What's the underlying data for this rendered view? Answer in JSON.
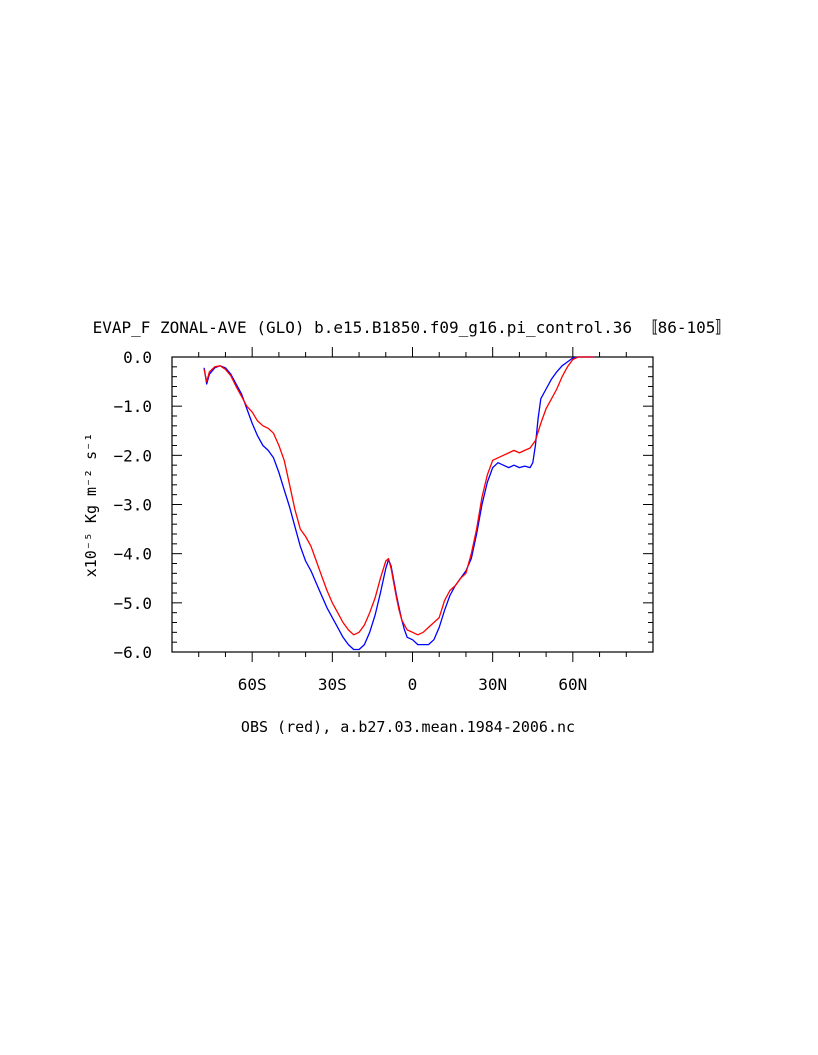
{
  "chart_data": {
    "type": "line",
    "title": "EVAP_F ZONAL-AVE (GLO) b.e15.B1850.f09_g16.pi_control.36 〚86-105〛",
    "xlabel": "OBS (red), a.b27.03.mean.1984-2006.nc",
    "ylabel": "x10⁻⁵ Kg m⁻² s⁻¹",
    "xlim": [
      -90,
      90
    ],
    "ylim": [
      -6.0,
      0.0
    ],
    "x_ticks": [
      {
        "value": -60,
        "label": "60S"
      },
      {
        "value": -30,
        "label": "30S"
      },
      {
        "value": 0,
        "label": "0"
      },
      {
        "value": 30,
        "label": "30N"
      },
      {
        "value": 60,
        "label": "60N"
      }
    ],
    "y_ticks": [
      {
        "value": 0,
        "label": "0.0"
      },
      {
        "value": -1,
        "label": "−1.0"
      },
      {
        "value": -2,
        "label": "−2.0"
      },
      {
        "value": -3,
        "label": "−3.0"
      },
      {
        "value": -4,
        "label": "−4.0"
      },
      {
        "value": -5,
        "label": "−5.0"
      },
      {
        "value": -6,
        "label": "−6.0"
      }
    ],
    "series": [
      {
        "color": "#0000ff",
        "points": [
          [
            -78,
            -0.22
          ],
          [
            -77,
            -0.55
          ],
          [
            -76,
            -0.35
          ],
          [
            -74,
            -0.22
          ],
          [
            -72,
            -0.18
          ],
          [
            -70,
            -0.22
          ],
          [
            -68,
            -0.35
          ],
          [
            -66,
            -0.55
          ],
          [
            -64,
            -0.75
          ],
          [
            -62,
            -1.05
          ],
          [
            -60,
            -1.35
          ],
          [
            -58,
            -1.6
          ],
          [
            -56,
            -1.8
          ],
          [
            -54,
            -1.9
          ],
          [
            -52,
            -2.05
          ],
          [
            -50,
            -2.35
          ],
          [
            -48,
            -2.7
          ],
          [
            -46,
            -3.05
          ],
          [
            -44,
            -3.45
          ],
          [
            -42,
            -3.85
          ],
          [
            -40,
            -4.15
          ],
          [
            -38,
            -4.35
          ],
          [
            -36,
            -4.6
          ],
          [
            -34,
            -4.85
          ],
          [
            -32,
            -5.1
          ],
          [
            -30,
            -5.3
          ],
          [
            -28,
            -5.5
          ],
          [
            -26,
            -5.7
          ],
          [
            -24,
            -5.85
          ],
          [
            -22,
            -5.95
          ],
          [
            -20,
            -5.95
          ],
          [
            -18,
            -5.85
          ],
          [
            -16,
            -5.6
          ],
          [
            -14,
            -5.25
          ],
          [
            -12,
            -4.8
          ],
          [
            -10,
            -4.3
          ],
          [
            -9,
            -4.12
          ],
          [
            -8,
            -4.25
          ],
          [
            -7,
            -4.55
          ],
          [
            -6,
            -4.85
          ],
          [
            -5,
            -5.1
          ],
          [
            -4,
            -5.35
          ],
          [
            -3,
            -5.55
          ],
          [
            -2,
            -5.7
          ],
          [
            0,
            -5.75
          ],
          [
            2,
            -5.85
          ],
          [
            4,
            -5.85
          ],
          [
            6,
            -5.85
          ],
          [
            8,
            -5.75
          ],
          [
            10,
            -5.5
          ],
          [
            12,
            -5.15
          ],
          [
            14,
            -4.85
          ],
          [
            16,
            -4.65
          ],
          [
            18,
            -4.5
          ],
          [
            20,
            -4.35
          ],
          [
            22,
            -4.1
          ],
          [
            24,
            -3.6
          ],
          [
            26,
            -3.0
          ],
          [
            28,
            -2.55
          ],
          [
            30,
            -2.25
          ],
          [
            32,
            -2.15
          ],
          [
            34,
            -2.2
          ],
          [
            36,
            -2.25
          ],
          [
            38,
            -2.2
          ],
          [
            40,
            -2.25
          ],
          [
            42,
            -2.22
          ],
          [
            44,
            -2.25
          ],
          [
            45,
            -2.15
          ],
          [
            46,
            -1.8
          ],
          [
            47,
            -1.25
          ],
          [
            48,
            -0.85
          ],
          [
            50,
            -0.65
          ],
          [
            52,
            -0.45
          ],
          [
            54,
            -0.3
          ],
          [
            56,
            -0.18
          ],
          [
            58,
            -0.1
          ],
          [
            60,
            -0.02
          ],
          [
            62,
            0.0
          ],
          [
            64,
            0.0
          ],
          [
            66,
            0.0
          ],
          [
            68,
            0.0
          ]
        ]
      },
      {
        "color": "#ff0000",
        "points": [
          [
            -78,
            -0.25
          ],
          [
            -77,
            -0.5
          ],
          [
            -76,
            -0.3
          ],
          [
            -74,
            -0.2
          ],
          [
            -72,
            -0.18
          ],
          [
            -70,
            -0.25
          ],
          [
            -68,
            -0.38
          ],
          [
            -66,
            -0.6
          ],
          [
            -64,
            -0.8
          ],
          [
            -62,
            -1.0
          ],
          [
            -60,
            -1.12
          ],
          [
            -58,
            -1.3
          ],
          [
            -56,
            -1.4
          ],
          [
            -54,
            -1.45
          ],
          [
            -52,
            -1.55
          ],
          [
            -50,
            -1.8
          ],
          [
            -48,
            -2.1
          ],
          [
            -46,
            -2.6
          ],
          [
            -44,
            -3.1
          ],
          [
            -42,
            -3.5
          ],
          [
            -40,
            -3.65
          ],
          [
            -38,
            -3.85
          ],
          [
            -36,
            -4.15
          ],
          [
            -34,
            -4.45
          ],
          [
            -32,
            -4.75
          ],
          [
            -30,
            -5.0
          ],
          [
            -28,
            -5.2
          ],
          [
            -26,
            -5.4
          ],
          [
            -24,
            -5.55
          ],
          [
            -22,
            -5.65
          ],
          [
            -20,
            -5.6
          ],
          [
            -18,
            -5.45
          ],
          [
            -16,
            -5.2
          ],
          [
            -14,
            -4.9
          ],
          [
            -12,
            -4.5
          ],
          [
            -10,
            -4.15
          ],
          [
            -9,
            -4.1
          ],
          [
            -8,
            -4.3
          ],
          [
            -7,
            -4.6
          ],
          [
            -6,
            -4.9
          ],
          [
            -5,
            -5.15
          ],
          [
            -4,
            -5.35
          ],
          [
            -3,
            -5.45
          ],
          [
            -2,
            -5.55
          ],
          [
            0,
            -5.6
          ],
          [
            2,
            -5.65
          ],
          [
            4,
            -5.6
          ],
          [
            6,
            -5.5
          ],
          [
            8,
            -5.4
          ],
          [
            10,
            -5.3
          ],
          [
            12,
            -4.95
          ],
          [
            14,
            -4.75
          ],
          [
            16,
            -4.65
          ],
          [
            18,
            -4.5
          ],
          [
            20,
            -4.4
          ],
          [
            22,
            -4.0
          ],
          [
            24,
            -3.5
          ],
          [
            26,
            -2.85
          ],
          [
            28,
            -2.4
          ],
          [
            30,
            -2.1
          ],
          [
            32,
            -2.05
          ],
          [
            34,
            -2.0
          ],
          [
            36,
            -1.95
          ],
          [
            38,
            -1.9
          ],
          [
            40,
            -1.95
          ],
          [
            42,
            -1.9
          ],
          [
            44,
            -1.85
          ],
          [
            46,
            -1.7
          ],
          [
            48,
            -1.35
          ],
          [
            50,
            -1.05
          ],
          [
            52,
            -0.85
          ],
          [
            54,
            -0.65
          ],
          [
            56,
            -0.4
          ],
          [
            58,
            -0.2
          ],
          [
            60,
            -0.05
          ],
          [
            62,
            0.0
          ],
          [
            64,
            0.0
          ],
          [
            66,
            0.0
          ],
          [
            68,
            0.0
          ]
        ]
      }
    ],
    "grid": false,
    "legend": "none"
  }
}
